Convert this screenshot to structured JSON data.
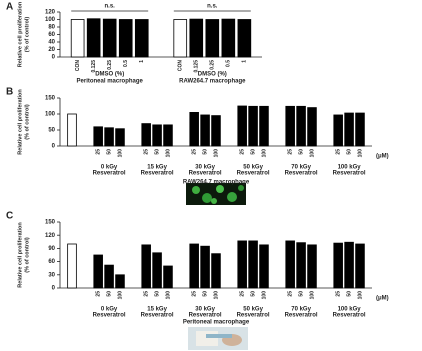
{
  "chart_data": [
    {
      "type": "grouped_bar",
      "panel": "A",
      "ylabel": [
        "Relative cell proliferation",
        "(% of control)"
      ],
      "ylim": [
        0,
        120
      ],
      "yticks": [
        0,
        20,
        40,
        60,
        80,
        100,
        120
      ],
      "color": "#000000",
      "groups": [
        {
          "label": "DMSO (%)",
          "sublabel": "Peritoneal macrophage",
          "annotation": "n.s.",
          "categories": [
            "CON",
            "0.125",
            "0.25",
            "0.5",
            "1"
          ],
          "values": [
            100,
            102,
            101,
            100,
            100
          ],
          "colors": [
            "#ffffff",
            "#000000",
            "#000000",
            "#000000",
            "#000000"
          ]
        },
        {
          "label": "DMSO (%)",
          "sublabel": "RAW264.7 macrophage",
          "annotation": "n.s.",
          "categories": [
            "CON",
            "0.125",
            "0.25",
            "0.5",
            "1"
          ],
          "values": [
            100,
            101,
            100,
            101,
            100
          ],
          "colors": [
            "#ffffff",
            "#000000",
            "#000000",
            "#000000",
            "#000000"
          ]
        }
      ]
    },
    {
      "type": "grouped_bar",
      "panel": "B",
      "ylabel": [
        "Relative cell proliferation",
        "(% of control)"
      ],
      "ylim": [
        0,
        150
      ],
      "yticks": [
        0,
        50,
        100,
        150
      ],
      "color": "#000000",
      "unit": "(μM)",
      "xlabel": "RAW264.7 macrophage",
      "groups": [
        {
          "categories": [
            null
          ],
          "values": [
            100
          ],
          "colors": [
            "#ffffff"
          ]
        },
        {
          "label": "0 kGy",
          "sublabel": "Resveratrol",
          "categories": [
            "25",
            "50",
            "100"
          ],
          "values": [
            60,
            57,
            54
          ]
        },
        {
          "label": "15 kGy",
          "sublabel": "Resveratrol",
          "categories": [
            "25",
            "50",
            "100"
          ],
          "values": [
            70,
            66,
            66
          ]
        },
        {
          "label": "30 kGy",
          "sublabel": "Resveratrol",
          "categories": [
            "25",
            "50",
            "100"
          ],
          "values": [
            105,
            97,
            95
          ]
        },
        {
          "label": "50 kGy",
          "sublabel": "Resveratrol",
          "categories": [
            "25",
            "50",
            "100"
          ],
          "values": [
            125,
            124,
            124
          ]
        },
        {
          "label": "70 kGy",
          "sublabel": "Resveratrol",
          "categories": [
            "25",
            "50",
            "100"
          ],
          "values": [
            124,
            124,
            120
          ]
        },
        {
          "label": "100 kGy",
          "sublabel": "Resveratrol",
          "categories": [
            "25",
            "50",
            "100"
          ],
          "values": [
            97,
            103,
            103
          ]
        }
      ]
    },
    {
      "type": "grouped_bar",
      "panel": "C",
      "ylabel": [
        "Relative cell proliferation",
        "(% of control)"
      ],
      "ylim": [
        0,
        150
      ],
      "yticks": [
        0,
        30,
        60,
        90,
        120,
        150
      ],
      "color": "#000000",
      "unit": "(μM)",
      "xlabel": "Peritoneal macrophage",
      "groups": [
        {
          "categories": [
            null
          ],
          "values": [
            100
          ],
          "colors": [
            "#ffffff"
          ]
        },
        {
          "label": "0 kGy",
          "sublabel": "Resveratrol",
          "categories": [
            "25",
            "50",
            "100"
          ],
          "values": [
            75,
            52,
            30
          ]
        },
        {
          "label": "15 kGy",
          "sublabel": "Resveratrol",
          "categories": [
            "25",
            "50",
            "100"
          ],
          "values": [
            98,
            80,
            50
          ]
        },
        {
          "label": "30 kGy",
          "sublabel": "Resveratrol",
          "categories": [
            "25",
            "50",
            "100"
          ],
          "values": [
            100,
            95,
            78
          ]
        },
        {
          "label": "50 kGy",
          "sublabel": "Resveratrol",
          "categories": [
            "25",
            "50",
            "100"
          ],
          "values": [
            107,
            107,
            98
          ]
        },
        {
          "label": "70 kGy",
          "sublabel": "Resveratrol",
          "categories": [
            "25",
            "50",
            "100"
          ],
          "values": [
            107,
            103,
            98
          ]
        },
        {
          "label": "100 kGy",
          "sublabel": "Resveratrol",
          "categories": [
            "25",
            "50",
            "100"
          ],
          "values": [
            102,
            104,
            100
          ]
        }
      ]
    }
  ]
}
